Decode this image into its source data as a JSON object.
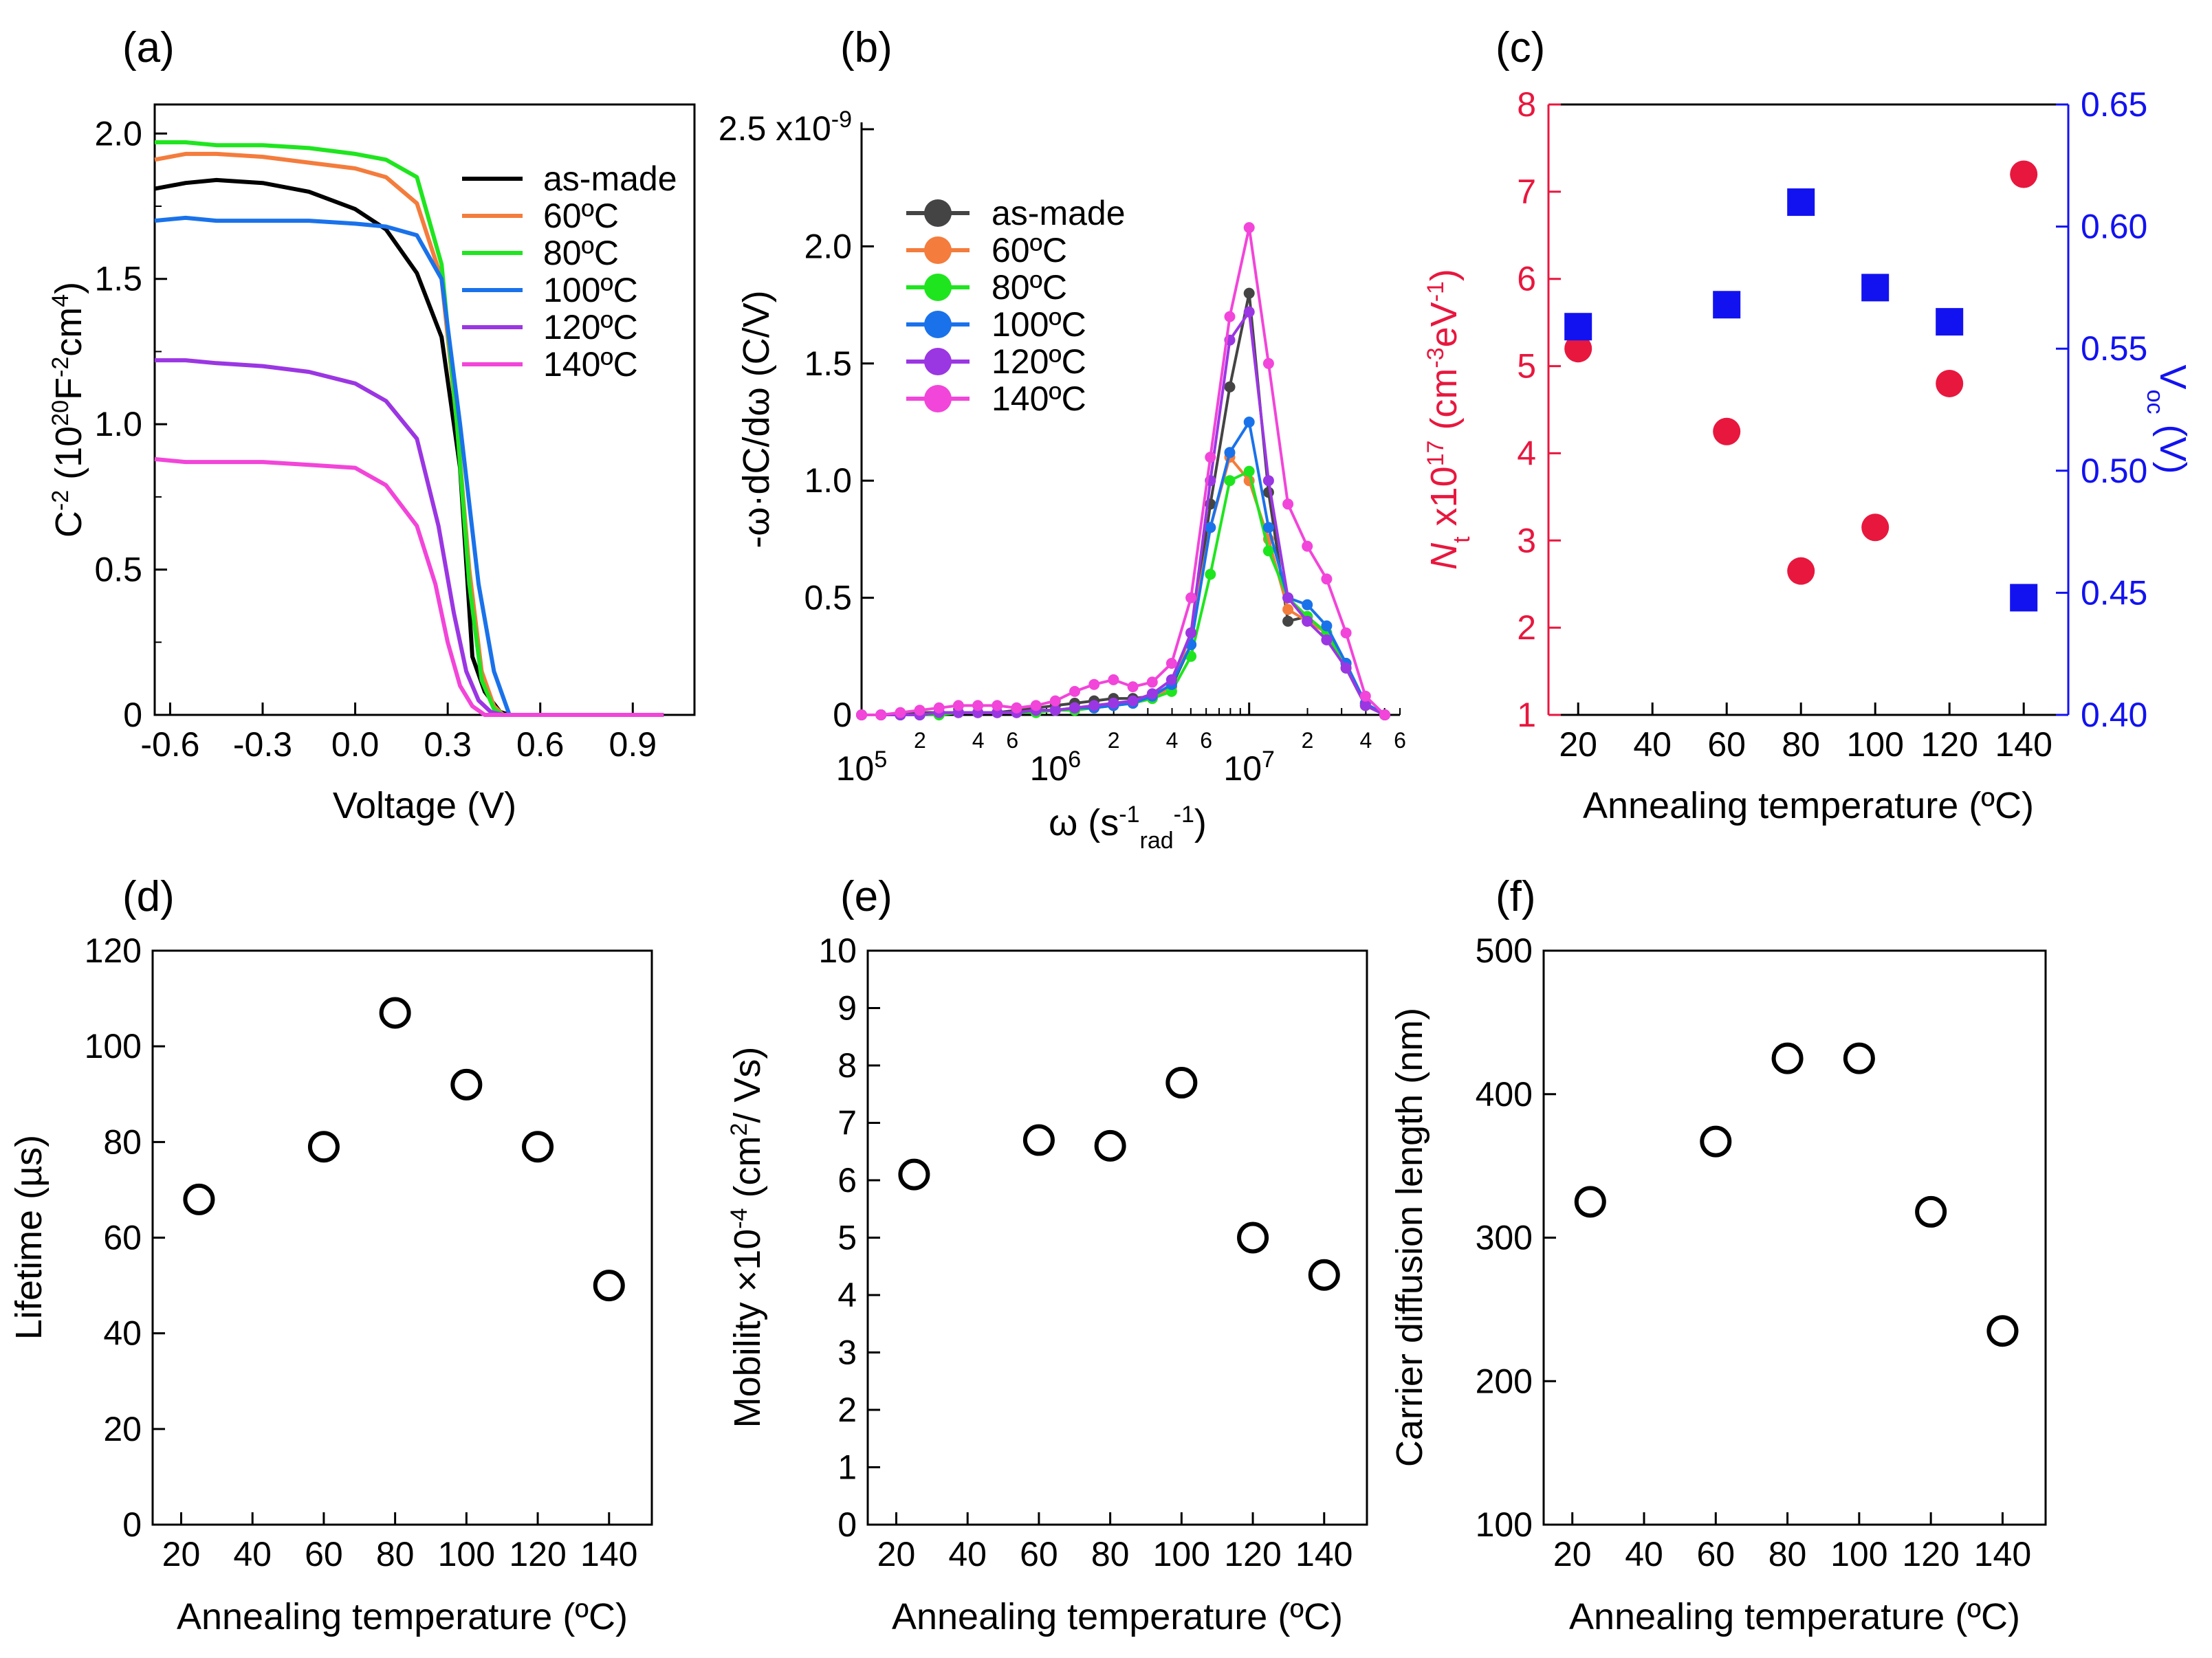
{
  "figure": {
    "panels": [
      "(a)",
      "(b)",
      "(c)",
      "(d)",
      "(e)",
      "(f)"
    ],
    "colors": {
      "as_made": "#000000",
      "t60": "#f47c3c",
      "t80": "#1fe51f",
      "t100": "#1a72ea",
      "t120": "#9b36e3",
      "t140": "#f245d9",
      "red": "#e8173e",
      "blue": "#1212f0",
      "gray_as_made": "#444444"
    }
  },
  "chart_data": [
    {
      "panel": "(a)",
      "type": "line",
      "xlabel": "Voltage (V)",
      "ylabel": "C-2 (1020F-2cm4)",
      "xlim": [
        -0.65,
        1.1
      ],
      "ylim": [
        0,
        2.1
      ],
      "xticks": [
        "-0.6",
        "-0.3",
        "0.0",
        "0.3",
        "0.6",
        "0.9"
      ],
      "yticks": [
        "0",
        "0.5",
        "1.0",
        "1.5",
        "2.0"
      ],
      "series": [
        {
          "name": "as-made",
          "color": "#000000",
          "x": [
            -0.65,
            -0.55,
            -0.45,
            -0.3,
            -0.15,
            0.0,
            0.1,
            0.2,
            0.28,
            0.34,
            0.38,
            0.42,
            0.47,
            0.5,
            0.6,
            0.8,
            1.0
          ],
          "y": [
            1.81,
            1.83,
            1.84,
            1.83,
            1.8,
            1.74,
            1.67,
            1.52,
            1.3,
            0.85,
            0.2,
            0.08,
            0.01,
            0.0,
            0.0,
            0.0,
            0.0
          ]
        },
        {
          "name": "60ºC",
          "color": "#f47c3c",
          "x": [
            -0.65,
            -0.55,
            -0.45,
            -0.3,
            -0.15,
            0.0,
            0.1,
            0.2,
            0.28,
            0.33,
            0.37,
            0.41,
            0.45,
            0.48,
            0.6,
            0.8,
            1.0
          ],
          "y": [
            1.91,
            1.93,
            1.93,
            1.92,
            1.9,
            1.88,
            1.85,
            1.76,
            1.5,
            1.0,
            0.5,
            0.15,
            0.03,
            0.0,
            0.0,
            0.0,
            0.0
          ]
        },
        {
          "name": "80ºC",
          "color": "#1fe51f",
          "x": [
            -0.65,
            -0.55,
            -0.45,
            -0.3,
            -0.15,
            0.0,
            0.1,
            0.2,
            0.28,
            0.33,
            0.37,
            0.41,
            0.45,
            0.48,
            0.6,
            0.8,
            1.0
          ],
          "y": [
            1.97,
            1.97,
            1.96,
            1.96,
            1.95,
            1.93,
            1.91,
            1.85,
            1.55,
            1.0,
            0.45,
            0.12,
            0.02,
            0.0,
            0.0,
            0.0,
            0.0
          ]
        },
        {
          "name": "100ºC",
          "color": "#1a72ea",
          "x": [
            -0.65,
            -0.55,
            -0.45,
            -0.3,
            -0.15,
            0.0,
            0.1,
            0.2,
            0.28,
            0.34,
            0.4,
            0.45,
            0.5,
            0.6,
            0.8,
            1.0
          ],
          "y": [
            1.7,
            1.71,
            1.7,
            1.7,
            1.7,
            1.69,
            1.68,
            1.65,
            1.5,
            1.0,
            0.45,
            0.15,
            0.0,
            0.0,
            0.0,
            0.0
          ]
        },
        {
          "name": "120ºC",
          "color": "#9b36e3",
          "x": [
            -0.65,
            -0.55,
            -0.45,
            -0.3,
            -0.15,
            0.0,
            0.1,
            0.2,
            0.27,
            0.32,
            0.36,
            0.4,
            0.44,
            0.48,
            0.6,
            0.8,
            1.0
          ],
          "y": [
            1.22,
            1.22,
            1.21,
            1.2,
            1.18,
            1.14,
            1.08,
            0.95,
            0.65,
            0.35,
            0.15,
            0.05,
            0.01,
            0.0,
            0.0,
            0.0,
            0.0
          ]
        },
        {
          "name": "140ºC",
          "color": "#f245d9",
          "x": [
            -0.65,
            -0.55,
            -0.45,
            -0.3,
            -0.15,
            0.0,
            0.1,
            0.2,
            0.26,
            0.3,
            0.34,
            0.38,
            0.42,
            0.46,
            0.6,
            0.8,
            1.0
          ],
          "y": [
            0.88,
            0.87,
            0.87,
            0.87,
            0.86,
            0.85,
            0.79,
            0.65,
            0.45,
            0.25,
            0.1,
            0.03,
            0.0,
            0.0,
            0.0,
            0.0,
            0.0
          ]
        }
      ],
      "legend": [
        "as-made",
        "60ºC",
        "80ºC",
        "100ºC",
        "120ºC",
        "140ºC"
      ]
    },
    {
      "panel": "(b)",
      "type": "line",
      "xscale": "log",
      "xlabel": "ω (s-1rad-1)",
      "ylabel": "-ω·dC/dω (C/V)",
      "xlim": [
        100000,
        60000000
      ],
      "ylim": [
        0,
        2.5
      ],
      "yticks": [
        "0",
        "0.5",
        "1.0",
        "1.5",
        "2.0",
        "2.5 x10-9"
      ],
      "xticks_major": [
        "105",
        "106",
        "107"
      ],
      "xticks_minor": [
        "2",
        "4",
        "6",
        "2",
        "4",
        "6",
        "2",
        "4",
        "6",
        "2",
        "4"
      ],
      "x": [
        100000,
        125893,
        158489,
        199526,
        251189,
        316228,
        398107,
        501187,
        630957,
        794328,
        1000000,
        1258925,
        1584893,
        1995262,
        2511886,
        3162278,
        3981072,
        5011872,
        6309573,
        7943282,
        10000000,
        12589254,
        15848932,
        19952623,
        25118864,
        31622777,
        39810717,
        50118723
      ],
      "series": [
        {
          "name": "as-made",
          "color": "#444444",
          "values": [
            0,
            0,
            0,
            0.01,
            0.01,
            0.01,
            0.01,
            0.01,
            0.02,
            0.03,
            0.04,
            0.05,
            0.06,
            0.07,
            0.07,
            0.08,
            0.12,
            0.3,
            0.9,
            1.4,
            1.8,
            0.95,
            0.4,
            0.42,
            0.35,
            0.22,
            0.05,
            0
          ]
        },
        {
          "name": "60ºC",
          "color": "#f47c3c",
          "values": [
            0,
            0,
            0,
            0,
            0.01,
            0.01,
            0.01,
            0.01,
            0.01,
            0.02,
            0.02,
            0.03,
            0.03,
            0.04,
            0.05,
            0.07,
            0.12,
            0.35,
            0.8,
            1.1,
            1.0,
            0.75,
            0.45,
            0.4,
            0.35,
            0.2,
            0.04,
            0
          ]
        },
        {
          "name": "80ºC",
          "color": "#1fe51f",
          "values": [
            0,
            0,
            0,
            0,
            0,
            0.01,
            0.01,
            0.01,
            0.01,
            0.01,
            0.02,
            0.02,
            0.03,
            0.04,
            0.05,
            0.07,
            0.1,
            0.25,
            0.6,
            1.0,
            1.04,
            0.7,
            0.5,
            0.42,
            0.35,
            0.2,
            0.04,
            0
          ]
        },
        {
          "name": "100ºC",
          "color": "#1a72ea",
          "values": [
            0,
            0,
            0,
            0,
            0.01,
            0.01,
            0.01,
            0.01,
            0.01,
            0.02,
            0.02,
            0.03,
            0.03,
            0.04,
            0.05,
            0.08,
            0.13,
            0.3,
            0.8,
            1.12,
            1.25,
            0.8,
            0.5,
            0.47,
            0.38,
            0.22,
            0.05,
            0
          ]
        },
        {
          "name": "120ºC",
          "color": "#9b36e3",
          "values": [
            0,
            0,
            0,
            0,
            0.01,
            0.01,
            0.01,
            0.01,
            0.01,
            0.02,
            0.02,
            0.03,
            0.04,
            0.05,
            0.06,
            0.09,
            0.15,
            0.35,
            1.0,
            1.6,
            1.72,
            1.0,
            0.5,
            0.4,
            0.32,
            0.2,
            0.04,
            0
          ]
        },
        {
          "name": "140ºC",
          "color": "#f245d9",
          "values": [
            0,
            0,
            0.01,
            0.02,
            0.03,
            0.04,
            0.04,
            0.04,
            0.03,
            0.04,
            0.06,
            0.1,
            0.13,
            0.15,
            0.12,
            0.14,
            0.22,
            0.5,
            1.1,
            1.7,
            2.08,
            1.5,
            0.9,
            0.72,
            0.58,
            0.35,
            0.08,
            0
          ]
        }
      ],
      "legend": [
        "as-made",
        "60ºC",
        "80ºC",
        "100ºC",
        "120ºC",
        "140ºC"
      ]
    },
    {
      "panel": "(c)",
      "type": "scatter",
      "xlabel": "Annealing temperature (ºC)",
      "ylabel_left": "Nt x10^17 (cm-3eV-1)",
      "ylabel_right": "Voc (V)",
      "xlim": [
        12,
        152
      ],
      "ylim_left": [
        1,
        8
      ],
      "ylim_right": [
        0.4,
        0.65
      ],
      "xticks": [
        "20",
        "40",
        "60",
        "80",
        "100",
        "120",
        "140"
      ],
      "yticks_left": [
        "1",
        "2",
        "3",
        "4",
        "5",
        "6",
        "7",
        "8"
      ],
      "yticks_right": [
        "0.40",
        "0.45",
        "0.50",
        "0.55",
        "0.60",
        "0.65"
      ],
      "series": [
        {
          "name": "Nt",
          "color": "#e8173e",
          "marker": "circle",
          "x": [
            20,
            60,
            80,
            100,
            120,
            140
          ],
          "y": [
            5.2,
            4.25,
            2.65,
            3.15,
            4.8,
            7.2
          ]
        },
        {
          "name": "Voc",
          "color": "#1212f0",
          "marker": "square",
          "x": [
            20,
            60,
            80,
            100,
            120,
            140
          ],
          "y": [
            0.559,
            0.568,
            0.61,
            0.575,
            0.561,
            0.448
          ]
        }
      ]
    },
    {
      "panel": "(d)",
      "type": "scatter",
      "xlabel": "Annealing temperature (ºC)",
      "ylabel": "Lifetime (µs)",
      "xlim": [
        12,
        152
      ],
      "ylim": [
        0,
        120
      ],
      "xticks": [
        "20",
        "40",
        "60",
        "80",
        "100",
        "120",
        "140"
      ],
      "yticks": [
        "0",
        "20",
        "40",
        "60",
        "80",
        "100",
        "120"
      ],
      "x": [
        25,
        60,
        80,
        100,
        120,
        140
      ],
      "y": [
        68,
        79,
        107,
        92,
        79,
        50
      ]
    },
    {
      "panel": "(e)",
      "type": "scatter",
      "xlabel": "Annealing temperature (ºC)",
      "ylabel": "Mobility ×10-4 (cm2/ Vs)",
      "xlim": [
        12,
        152
      ],
      "ylim": [
        0,
        10
      ],
      "xticks": [
        "20",
        "40",
        "60",
        "80",
        "100",
        "120",
        "140"
      ],
      "yticks": [
        "0",
        "1",
        "2",
        "3",
        "4",
        "5",
        "6",
        "7",
        "8",
        "9",
        "10"
      ],
      "x": [
        25,
        60,
        80,
        100,
        120,
        140
      ],
      "y": [
        6.1,
        6.7,
        6.6,
        7.7,
        5.0,
        4.35
      ]
    },
    {
      "panel": "(f)",
      "type": "scatter",
      "xlabel": "Annealing temperature (ºC)",
      "ylabel": "Carrier diffusion length (nm)",
      "xlim": [
        12,
        152
      ],
      "ylim": [
        100,
        500
      ],
      "xticks": [
        "20",
        "40",
        "60",
        "80",
        "100",
        "120",
        "140"
      ],
      "yticks": [
        "100",
        "200",
        "300",
        "400",
        "500"
      ],
      "x": [
        25,
        60,
        80,
        100,
        120,
        140
      ],
      "y": [
        325,
        367,
        425,
        425,
        318,
        235
      ]
    }
  ]
}
